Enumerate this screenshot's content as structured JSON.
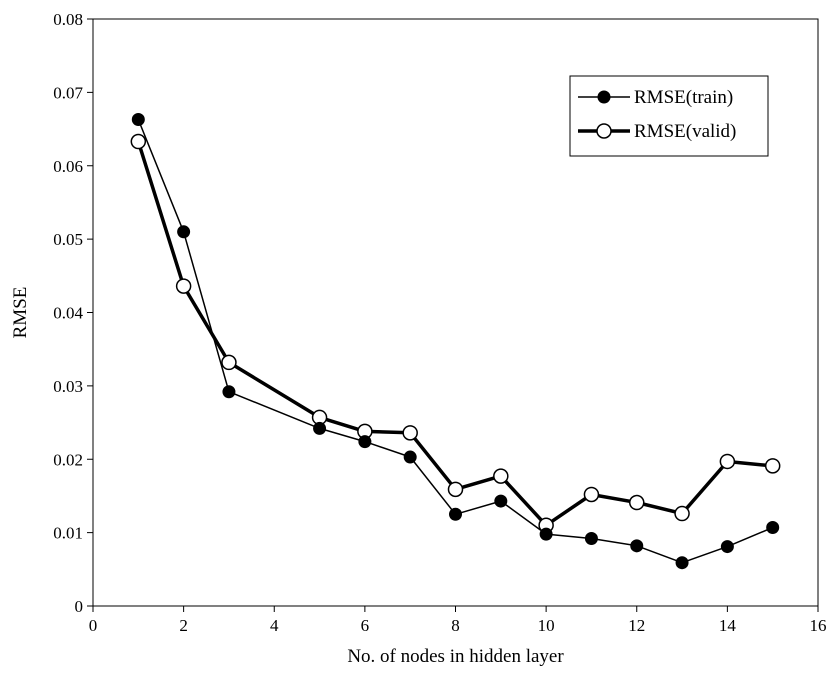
{
  "chart_data": {
    "type": "line",
    "title": "",
    "xlabel": "No. of nodes in hidden layer",
    "ylabel": "RMSE",
    "xlim": [
      0,
      16
    ],
    "ylim": [
      0,
      0.08
    ],
    "xticks": [
      0,
      2,
      4,
      6,
      8,
      10,
      12,
      14,
      16
    ],
    "yticks": [
      0,
      0.01,
      0.02,
      0.03,
      0.04,
      0.05,
      0.06,
      0.07,
      0.08
    ],
    "xtick_labels": [
      "0",
      "2",
      "4",
      "6",
      "8",
      "10",
      "12",
      "14",
      "16"
    ],
    "ytick_labels": [
      "0",
      "0.01",
      "0.02",
      "0.03",
      "0.04",
      "0.05",
      "0.06",
      "0.07",
      "0.08"
    ],
    "grid": false,
    "legend_position": "top-right",
    "series": [
      {
        "name": "RMSE(train)",
        "marker": "filled-circle",
        "color": "#000000",
        "x": [
          1,
          2,
          3,
          5,
          6,
          7,
          8,
          9,
          10,
          11,
          12,
          13,
          14,
          15
        ],
        "y": [
          0.0663,
          0.051,
          0.0292,
          0.0242,
          0.0224,
          0.0203,
          0.0125,
          0.0143,
          0.0098,
          0.0092,
          0.0082,
          0.0059,
          0.0081,
          0.0107
        ]
      },
      {
        "name": "RMSE(valid)",
        "marker": "open-circle",
        "color": "#000000",
        "x": [
          1,
          2,
          3,
          5,
          6,
          7,
          8,
          9,
          10,
          11,
          12,
          13,
          14,
          15
        ],
        "y": [
          0.0633,
          0.0436,
          0.0332,
          0.0257,
          0.0238,
          0.0236,
          0.0159,
          0.0177,
          0.011,
          0.0152,
          0.0141,
          0.0126,
          0.0197,
          0.0191
        ]
      }
    ]
  }
}
